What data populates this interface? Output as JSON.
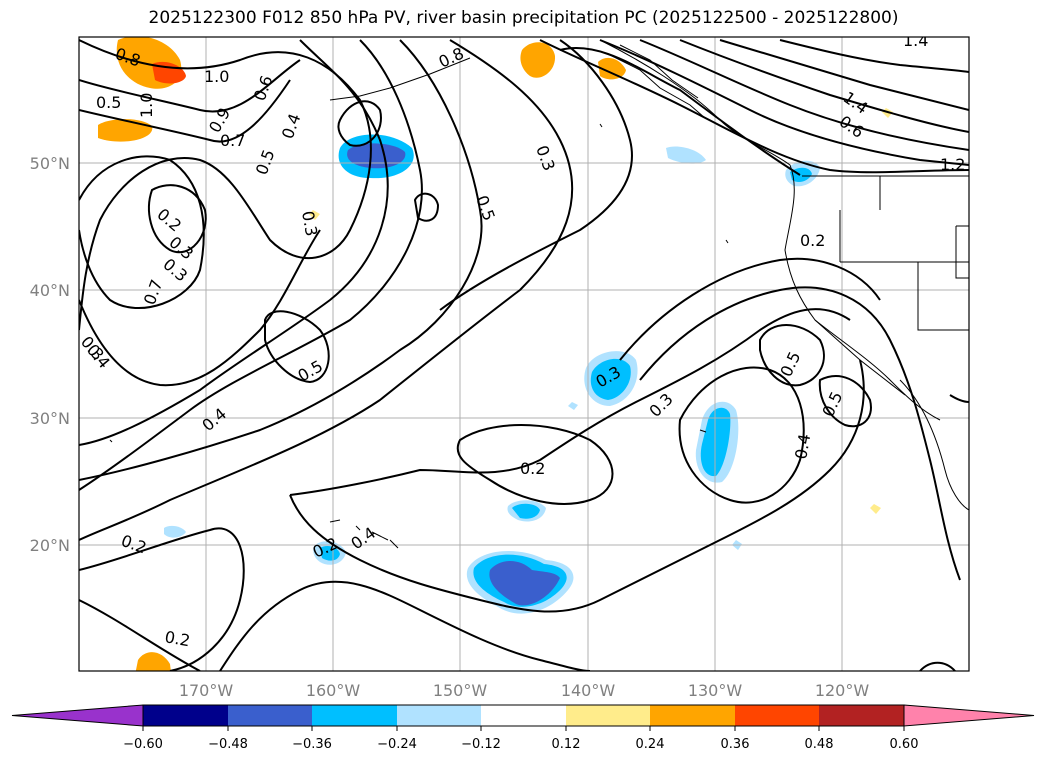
{
  "title": "2025122300 F012 850 hPa PV, river basin precipitation PC (2025122500 - 2025122800)",
  "map": {
    "lat_labels": [
      "50°N",
      "40°N",
      "30°N",
      "20°N"
    ],
    "lon_labels": [
      "170°W",
      "160°W",
      "150°W",
      "140°W",
      "130°W",
      "120°W"
    ],
    "contour_labels": [
      "0.8",
      "1.0",
      "0.8",
      "1.0",
      "0.9",
      "1.4",
      "0.6",
      "0.5",
      "0.4",
      "0.7",
      "0.5",
      "0.3",
      "0.3",
      "0.5",
      "0.2",
      "0.3",
      "0.3",
      "0.7",
      "0.3",
      "0.4",
      "0.2",
      "0.5",
      "0.4",
      "0.2",
      "0.3",
      "0.3",
      "0.5",
      "0.5",
      "0.4",
      "0.2",
      "0.2",
      "0.4",
      "0.2",
      "1.2",
      "1.4",
      "0.6"
    ]
  },
  "colorbar": {
    "tick_labels": [
      "−0.60",
      "−0.48",
      "−0.36",
      "−0.24",
      "−0.12",
      "0.12",
      "0.24",
      "0.36",
      "0.48",
      "0.60"
    ],
    "colors": [
      "#9932CC",
      "#00008B",
      "#3A5FCD",
      "#00BFFF",
      "#B0E2FF",
      "#FFFFFF",
      "#FFEC8B",
      "#FFA500",
      "#FF4500",
      "#B22222",
      "#FF82AB"
    ]
  }
}
